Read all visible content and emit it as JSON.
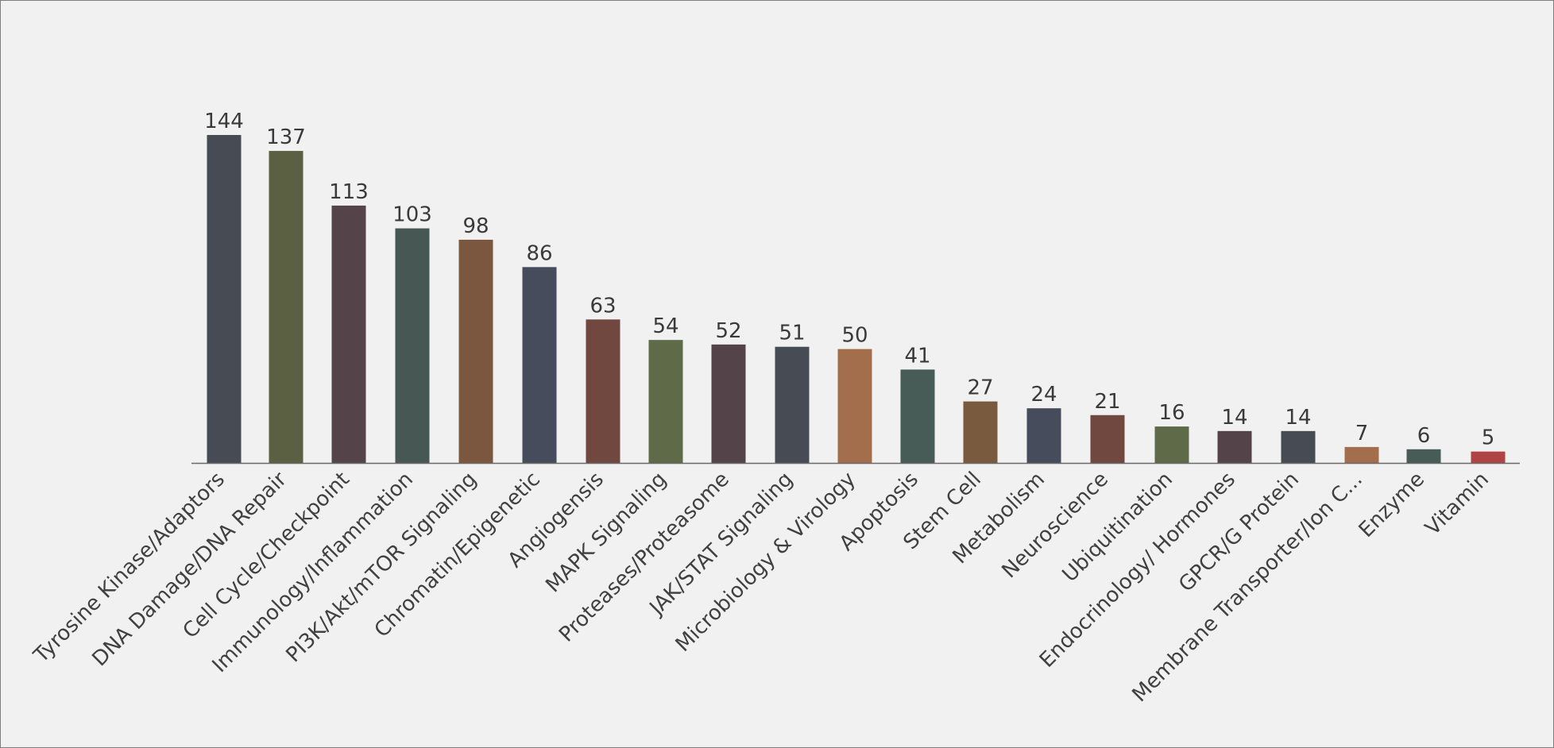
{
  "chart_data": {
    "type": "bar",
    "title": "",
    "xlabel": "",
    "ylabel": "",
    "ylim": [
      0,
      144
    ],
    "grid": false,
    "legend": "none",
    "categories": [
      "Tyrosine Kinase/Adaptors",
      "DNA Damage/DNA Repair",
      "Cell Cycle/Checkpoint",
      "Immunology/Inflammation",
      "PI3K/Akt/mTOR Signaling",
      "Chromatin/Epigenetic",
      "Angiogensis",
      "MAPK Signaling",
      "Proteases/Proteasome",
      "JAK/STAT Signaling",
      "Microbiology & Virology",
      "Apoptosis",
      "Stem Cell",
      "Metabolism",
      "Neuroscience",
      "Ubiquitination",
      "Endocrinology/ Hormones",
      "GPCR/G Protein",
      "Membrane Transporter/Ion C...",
      "Enzyme",
      "Vitamin"
    ],
    "values": [
      144,
      137,
      113,
      103,
      98,
      86,
      63,
      54,
      52,
      51,
      50,
      41,
      27,
      24,
      21,
      16,
      14,
      14,
      7,
      6,
      5
    ],
    "colors": [
      "#474c54",
      "#5b6042",
      "#544349",
      "#475754",
      "#7a573e",
      "#474c5c",
      "#704840",
      "#5f6b48",
      "#544349",
      "#474c54",
      "#a36e4b",
      "#475b57",
      "#7a5a3e",
      "#474c5c",
      "#704840",
      "#5f6b48",
      "#544349",
      "#474c54",
      "#a36e4b",
      "#475b57",
      "#b04444"
    ]
  }
}
